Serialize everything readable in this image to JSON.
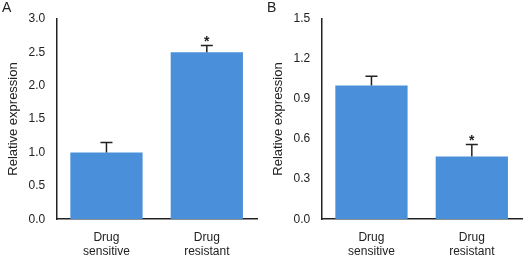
{
  "chart_data": [
    {
      "type": "bar",
      "title": "A",
      "categories": [
        "Drug sensitive",
        "Drug resistant"
      ],
      "values": [
        1.0,
        2.5
      ],
      "errors": [
        0.15,
        0.1
      ],
      "color": "#4a8fd9",
      "y_label": "Relative expression",
      "ylim": [
        0,
        3.0
      ],
      "yticks": [
        {
          "value": 0,
          "label": "0.0"
        },
        0.5,
        {
          "value": 1,
          "label": "1.0"
        },
        1.5,
        {
          "value": 2,
          "label": "2.0"
        },
        2.5,
        {
          "value": 3,
          "label": "3.0"
        }
      ],
      "annotations": [
        {
          "text": "*",
          "category": "Drug resistant"
        }
      ],
      "grid": false
    },
    {
      "type": "bar",
      "title": "B",
      "categories": [
        "Drug sensitive",
        "Drug resistant"
      ],
      "values": [
        1.0,
        0.47
      ],
      "errors": [
        0.07,
        0.09
      ],
      "color": "#4a8fd9",
      "y_label": "Relative expression",
      "ylim": [
        0,
        1.5
      ],
      "yticks": [
        {
          "value": 0,
          "label": "0.0"
        },
        0.3,
        0.6,
        0.9,
        1.2,
        1.5
      ],
      "annotations": [
        {
          "text": "*",
          "category": "Drug resistant"
        }
      ],
      "grid": false
    }
  ]
}
